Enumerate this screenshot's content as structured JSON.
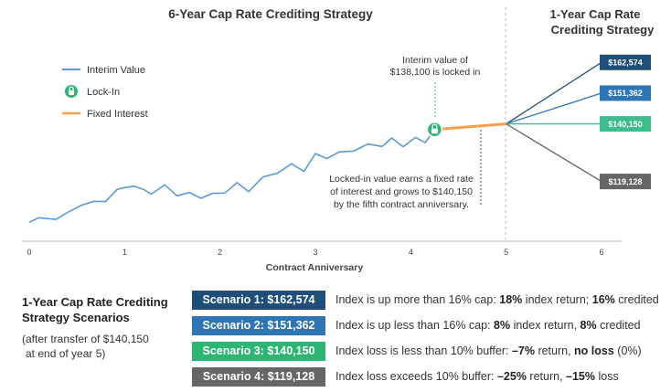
{
  "chart_data": {
    "type": "line",
    "title": "6-Year Cap Rate Crediting Strategy",
    "side_title_line1": "1-Year Cap Rate",
    "side_title_line2": "Crediting Strategy",
    "xlabel": "Contract Anniversary",
    "x_ticks": [
      "0",
      "1",
      "2",
      "3",
      "4",
      "5",
      "6"
    ],
    "xlim": [
      0,
      6
    ],
    "ylim": [
      100000,
      172000
    ],
    "legend": [
      {
        "name": "Interim Value",
        "color": "#5b9bd5",
        "marker": "line"
      },
      {
        "name": "Lock-In",
        "color": "#2bb673",
        "marker": "lock"
      },
      {
        "name": "Fixed Interest",
        "color": "#f5a04c",
        "marker": "line"
      }
    ],
    "series": [
      {
        "name": "Interim Value",
        "color": "#5b9bd5",
        "points": [
          [
            0.0,
            104200
          ],
          [
            0.1,
            105900
          ],
          [
            0.28,
            105300
          ],
          [
            0.4,
            107800
          ],
          [
            0.55,
            110500
          ],
          [
            0.68,
            111900
          ],
          [
            0.8,
            111800
          ],
          [
            0.92,
            116200
          ],
          [
            1.0,
            116900
          ],
          [
            1.1,
            117400
          ],
          [
            1.2,
            116200
          ],
          [
            1.28,
            114500
          ],
          [
            1.42,
            117900
          ],
          [
            1.55,
            113900
          ],
          [
            1.68,
            115100
          ],
          [
            1.8,
            113000
          ],
          [
            1.92,
            114800
          ],
          [
            2.05,
            114900
          ],
          [
            2.18,
            118700
          ],
          [
            2.3,
            115400
          ],
          [
            2.45,
            120800
          ],
          [
            2.6,
            122100
          ],
          [
            2.75,
            125600
          ],
          [
            2.88,
            122800
          ],
          [
            3.0,
            129300
          ],
          [
            3.12,
            127500
          ],
          [
            3.25,
            129900
          ],
          [
            3.4,
            130200
          ],
          [
            3.55,
            132800
          ],
          [
            3.7,
            131900
          ],
          [
            3.8,
            135000
          ],
          [
            3.92,
            131800
          ],
          [
            4.05,
            135200
          ],
          [
            4.15,
            133300
          ],
          [
            4.25,
            138100
          ]
        ]
      },
      {
        "name": "Fixed Interest",
        "color": "#f5a04c",
        "points": [
          [
            4.25,
            138100
          ],
          [
            5.0,
            140150
          ]
        ]
      }
    ],
    "lockin": {
      "x": 4.25,
      "y": 138100,
      "color": "#2bb673"
    },
    "scenario_fan": {
      "x_start": 5.0,
      "x_end": 6.0,
      "start_value": 140150,
      "endpoints": [
        {
          "label": "$162,574",
          "value": 162574,
          "color": "#1f4e79"
        },
        {
          "label": "$151,362",
          "value": 151362,
          "color": "#2e75b6"
        },
        {
          "label": "$140,150",
          "value": 140150,
          "color": "#3dbd8c"
        },
        {
          "label": "$119,128",
          "value": 119128,
          "color": "#666666"
        }
      ]
    },
    "annotations": {
      "interim_line1": "Interim value of",
      "interim_line2": "$138,100 is locked in",
      "locked_line1": "Locked-in value earns a fixed rate",
      "locked_line2": "of interest and grows to $140,150",
      "locked_line3": "by the fifth contract anniversary."
    }
  },
  "scenarios": {
    "title_line1": "1-Year Cap Rate Crediting",
    "title_line2": "Strategy Scenarios",
    "note_line1": "(after transfer of $140,150",
    "note_line2": "at end of year 5)",
    "items": [
      {
        "label": "Scenario 1: $162,574",
        "color": "#1f4e79",
        "desc_a": "Index is up more than 16% cap: ",
        "desc_b": "18%",
        "desc_c": " index return; ",
        "desc_d": "16%",
        "desc_e": " credited"
      },
      {
        "label": "Scenario 2: $151,362",
        "color": "#2e75b6",
        "desc_a": "Index is up less than 16% cap: ",
        "desc_b": "8%",
        "desc_c": " index return, ",
        "desc_d": "8%",
        "desc_e": " credited"
      },
      {
        "label": "Scenario 3: $140,150",
        "color": "#2bb673",
        "desc_a": "Index loss is less than 10% buffer: ",
        "desc_b": "–7%",
        "desc_c": " return, ",
        "desc_d": "no loss",
        "desc_e": " (0%)"
      },
      {
        "label": "Scenario 4: $119,128",
        "color": "#666666",
        "desc_a": "Index loss exceeds 10% buffer: ",
        "desc_b": "–25%",
        "desc_c": " return, ",
        "desc_d": "–15%",
        "desc_e": " loss"
      }
    ]
  }
}
